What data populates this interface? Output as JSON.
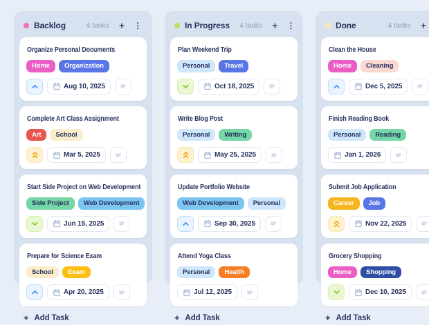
{
  "colors": {
    "page_bg": "#e7eef8",
    "column_bg": "#d8e1ef",
    "title_color": "#27305e",
    "muted_color": "#8d9ab9"
  },
  "icons": {
    "add": "+",
    "menu": "⋮",
    "calendar": "calendar-icon",
    "notes": "notes-icon"
  },
  "priority_styles": {
    "high": {
      "icon": "chevron-up-icon",
      "bg": "#eaf4fe",
      "border": "#bedcfa",
      "color": "#3f93f6"
    },
    "highest": {
      "icon": "double-chevron-up-icon",
      "bg": "#fdf2cd",
      "border": "#f8e8b6",
      "color": "#f2a30c"
    },
    "low": {
      "icon": "chevron-down-icon",
      "bg": "#e9f8d2",
      "border": "#d8efb3",
      "color": "#86c929"
    }
  },
  "board": {
    "columns": [
      {
        "name": "Backlog",
        "dot_color": "#ef6fc1",
        "count": "4 tasks",
        "add_label": "Add Task",
        "tasks": [
          {
            "title": "Organize Personal Documents",
            "tags": [
              {
                "label": "Home",
                "bg": "#ea5ec4",
                "fg": "#ffffff"
              },
              {
                "label": "Organization",
                "bg": "#5a76e6",
                "fg": "#ffffff"
              }
            ],
            "priority": "high",
            "date": "Aug 10, 2025"
          },
          {
            "title": "Complete Art Class Assignment",
            "tags": [
              {
                "label": "Art",
                "bg": "#e5564e",
                "fg": "#ffffff"
              },
              {
                "label": "School",
                "bg": "#fbedcb",
                "fg": "#27305e"
              }
            ],
            "priority": "highest",
            "date": "Mar 5, 2025"
          },
          {
            "title": "Start Side Project on Web Development",
            "tags": [
              {
                "label": "Side Project",
                "bg": "#74d7a5",
                "fg": "#27305e"
              },
              {
                "label": "Web Development",
                "bg": "#7cc5f0",
                "fg": "#27305e"
              }
            ],
            "priority": "low",
            "date": "Jun 15, 2025"
          },
          {
            "title": "Prepare for Science Exam",
            "tags": [
              {
                "label": "School",
                "bg": "#fbedcb",
                "fg": "#27305e"
              },
              {
                "label": "Exam",
                "bg": "#fcbf12",
                "fg": "#ffffff"
              }
            ],
            "priority": "high",
            "date": "Apr 20, 2025"
          }
        ]
      },
      {
        "name": "In Progress",
        "dot_color": "#b9e25f",
        "count": "4 tasks",
        "add_label": "Add Task",
        "tasks": [
          {
            "title": "Plan Weekend Trip",
            "tags": [
              {
                "label": "Personal",
                "bg": "#cfe7fb",
                "fg": "#27305e"
              },
              {
                "label": "Travel",
                "bg": "#5a76e6",
                "fg": "#ffffff"
              }
            ],
            "priority": "low",
            "date": "Oct 18, 2025"
          },
          {
            "title": "Write Blog Post",
            "tags": [
              {
                "label": "Personal",
                "bg": "#cfe7fb",
                "fg": "#27305e"
              },
              {
                "label": "Writing",
                "bg": "#74d7a5",
                "fg": "#27305e"
              }
            ],
            "priority": "highest",
            "date": "May 25, 2025"
          },
          {
            "title": "Update Portfolio Website",
            "tags": [
              {
                "label": "Web Development",
                "bg": "#7cc5f0",
                "fg": "#27305e"
              },
              {
                "label": "Personal",
                "bg": "#cfe7fb",
                "fg": "#27305e"
              }
            ],
            "priority": "high",
            "date": "Sep 30, 2025"
          },
          {
            "title": "Attend Yoga Class",
            "tags": [
              {
                "label": "Personal",
                "bg": "#cfe7fb",
                "fg": "#27305e"
              },
              {
                "label": "Health",
                "bg": "#f87e26",
                "fg": "#ffffff"
              }
            ],
            "priority": null,
            "date": "Jul 12, 2025"
          }
        ]
      },
      {
        "name": "Done",
        "dot_color": "#f7e8ac",
        "count": "4 tasks",
        "add_label": "Add Task",
        "tasks": [
          {
            "title": "Clean the House",
            "tags": [
              {
                "label": "Home",
                "bg": "#ea5ec4",
                "fg": "#ffffff"
              },
              {
                "label": "Cleaning",
                "bg": "#fbd9d0",
                "fg": "#27305e"
              }
            ],
            "priority": "high",
            "date": "Dec 5, 2025"
          },
          {
            "title": "Finish Reading Book",
            "tags": [
              {
                "label": "Personal",
                "bg": "#cfe7fb",
                "fg": "#27305e"
              },
              {
                "label": "Reading",
                "bg": "#74d7a5",
                "fg": "#27305e"
              }
            ],
            "priority": null,
            "date": "Jan 1, 2026"
          },
          {
            "title": "Submit Job Application",
            "tags": [
              {
                "label": "Career",
                "bg": "#f6b51f",
                "fg": "#ffffff"
              },
              {
                "label": "Job",
                "bg": "#5a76e6",
                "fg": "#ffffff"
              }
            ],
            "priority": "highest",
            "date": "Nov 22, 2025"
          },
          {
            "title": "Grocery Shopping",
            "tags": [
              {
                "label": "Home",
                "bg": "#ea5ec4",
                "fg": "#ffffff"
              },
              {
                "label": "Shopping",
                "bg": "#2e4da3",
                "fg": "#ffffff"
              }
            ],
            "priority": "low",
            "date": "Dec 10, 2025"
          }
        ]
      }
    ]
  }
}
